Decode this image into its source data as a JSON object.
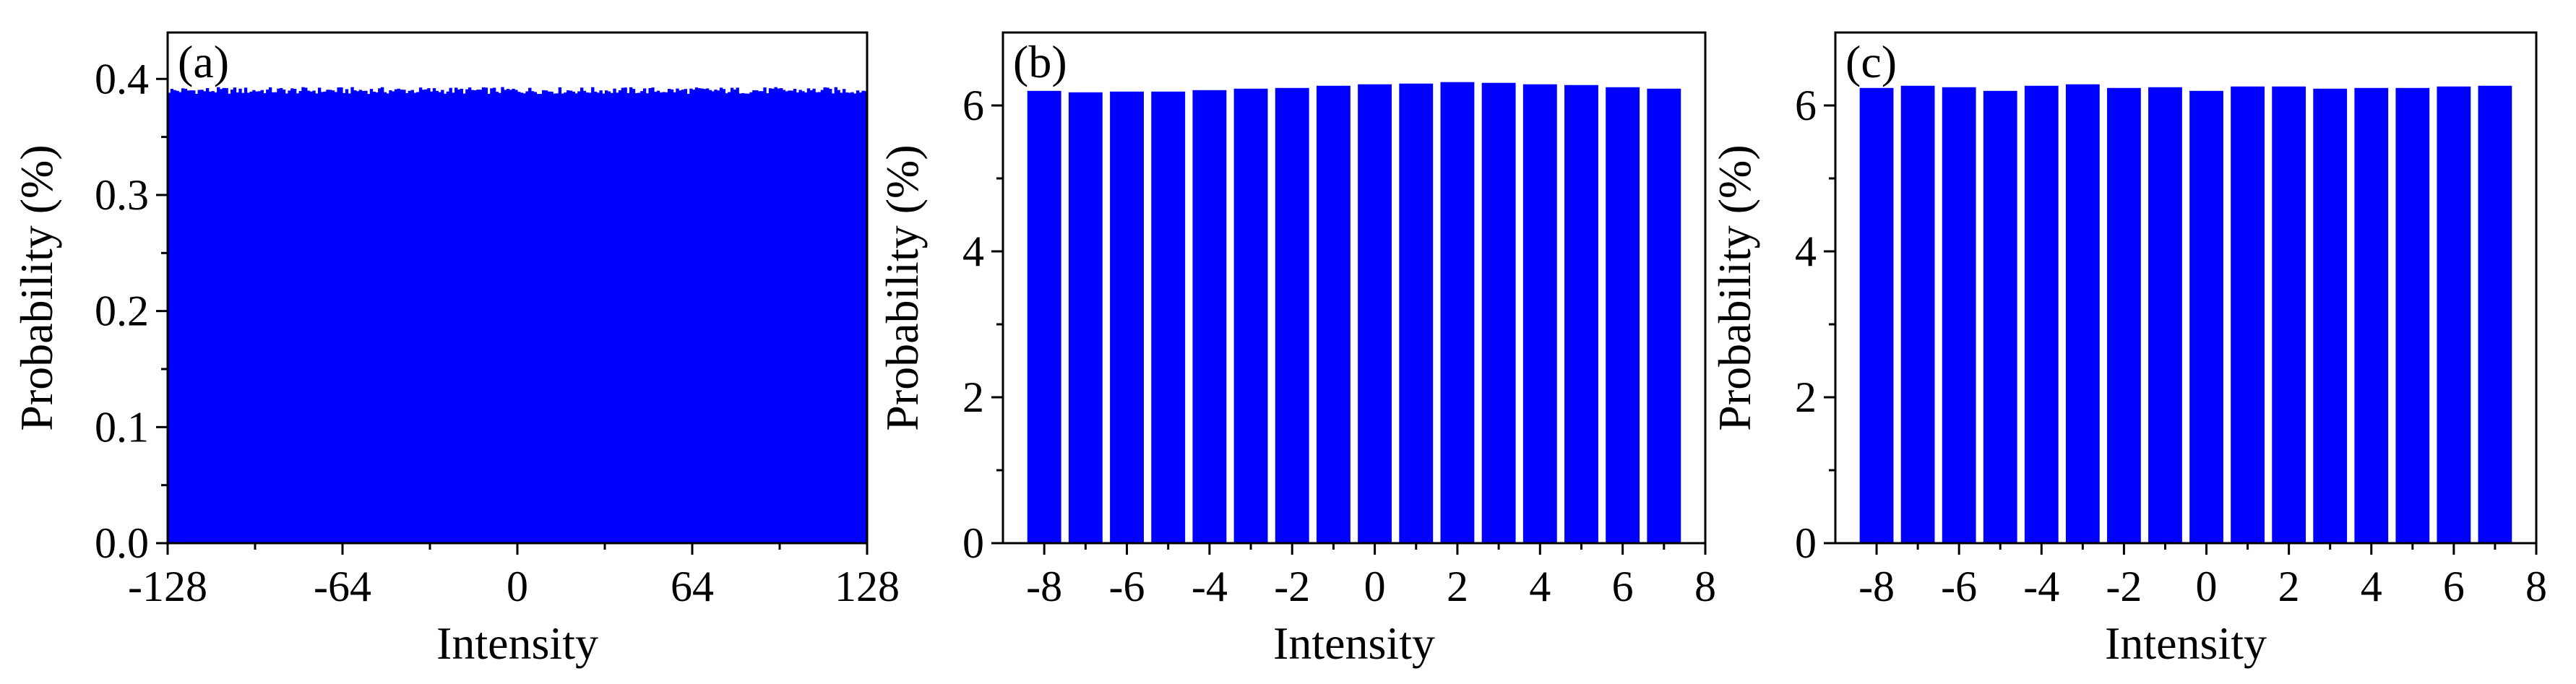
{
  "chart_data": [
    {
      "type": "bar",
      "panel_label": "(a)",
      "xlabel": "Intensity",
      "ylabel": "Probability (%)",
      "xlim": [
        -128,
        128
      ],
      "ylim": [
        0,
        0.44
      ],
      "xticks": [
        -128,
        -64,
        0,
        64,
        128
      ],
      "xtick_labels": [
        "-128",
        "-64",
        "0",
        "64",
        "128"
      ],
      "yticks": [
        0.0,
        0.1,
        0.2,
        0.3,
        0.4
      ],
      "ytick_labels": [
        "0.0",
        "0.1",
        "0.2",
        "0.3",
        "0.4"
      ],
      "bar_color": "#0000ff",
      "x_start": -128,
      "bin_count": 256,
      "values_approx_uniform": 0.39
    },
    {
      "type": "bar",
      "panel_label": "(b)",
      "xlabel": "Intensity",
      "ylabel": "Probability (%)",
      "xlim": [
        -9,
        8
      ],
      "ylim": [
        0,
        7
      ],
      "xticks": [
        -8,
        -6,
        -4,
        -2,
        0,
        2,
        4,
        6,
        8
      ],
      "xtick_labels": [
        "-8",
        "-6",
        "-4",
        "-2",
        "0",
        "2",
        "4",
        "6",
        "8"
      ],
      "yticks": [
        0,
        2,
        4,
        6
      ],
      "ytick_labels": [
        "0",
        "2",
        "4",
        "6"
      ],
      "bar_color": "#0000ff",
      "categories": [
        -8,
        -7,
        -6,
        -5,
        -4,
        -3,
        -2,
        -1,
        0,
        1,
        2,
        3,
        4,
        5,
        6,
        7
      ],
      "values": [
        6.2,
        6.18,
        6.19,
        6.19,
        6.21,
        6.23,
        6.24,
        6.27,
        6.29,
        6.3,
        6.32,
        6.31,
        6.29,
        6.28,
        6.25,
        6.23
      ]
    },
    {
      "type": "bar",
      "panel_label": "(c)",
      "xlabel": "Intensity",
      "ylabel": "Probability (%)",
      "xlim": [
        -9,
        8
      ],
      "ylim": [
        0,
        7
      ],
      "xticks": [
        -8,
        -6,
        -4,
        -2,
        0,
        2,
        4,
        6,
        8
      ],
      "xtick_labels": [
        "-8",
        "-6",
        "-4",
        "-2",
        "0",
        "2",
        "4",
        "6",
        "8"
      ],
      "yticks": [
        0,
        2,
        4,
        6
      ],
      "ytick_labels": [
        "0",
        "2",
        "4",
        "6"
      ],
      "bar_color": "#0000ff",
      "categories": [
        -8,
        -7,
        -6,
        -5,
        -4,
        -3,
        -2,
        -1,
        0,
        1,
        2,
        3,
        4,
        5,
        6,
        7
      ],
      "values": [
        6.24,
        6.27,
        6.25,
        6.2,
        6.27,
        6.29,
        6.24,
        6.25,
        6.2,
        6.26,
        6.26,
        6.23,
        6.24,
        6.24,
        6.26,
        6.27
      ]
    }
  ]
}
